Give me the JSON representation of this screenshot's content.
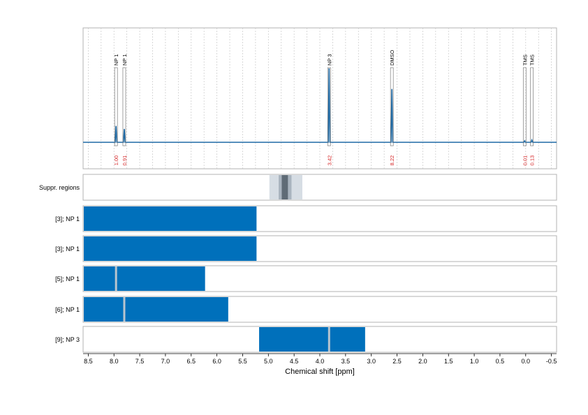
{
  "chart_data": {
    "type": "nmr-spectrum-with-range-tracks",
    "xlabel": "Chemical shift [ppm]",
    "xlim": [
      8.6,
      -0.6
    ],
    "x_ticks": [
      8.5,
      8.0,
      7.5,
      7.0,
      6.5,
      6.0,
      5.5,
      5.0,
      4.5,
      4.0,
      3.5,
      3.0,
      2.5,
      2.0,
      1.5,
      1.0,
      0.5,
      0.0,
      -0.5
    ],
    "x_tick_labels": [
      "8.5",
      "8.0",
      "7.5",
      "7.0",
      "6.5",
      "6.0",
      "5.5",
      "5.0",
      "4.5",
      "4.0",
      "3.5",
      "3.0",
      "2.5",
      "2.0",
      "1.5",
      "1.0",
      "0.5",
      "0.0",
      "-0.5"
    ],
    "grid": true,
    "spectrum_color": "#1f6aa5",
    "peak_label_color": "#d62728",
    "peaks": [
      {
        "label": "NP 1",
        "shift": 7.96,
        "height": 0.22,
        "integral": "1.00"
      },
      {
        "label": "NP 1",
        "shift": 7.8,
        "height": 0.18,
        "integral": "0.91"
      },
      {
        "label": "NP 3",
        "shift": 3.82,
        "height": 1.0,
        "integral": "3.42"
      },
      {
        "label": "DMSO",
        "shift": 2.6,
        "height": 0.72,
        "integral": "8.22"
      },
      {
        "label": "TMS",
        "shift": 0.02,
        "height": 0.02,
        "integral": "0.01"
      },
      {
        "label": "TMS",
        "shift": -0.12,
        "height": 0.03,
        "integral": "0.13"
      }
    ],
    "tracks": [
      {
        "label": "Suppr. regions",
        "kind": "suppression",
        "regions": [
          {
            "from": 4.98,
            "to": 4.34,
            "color": "#d6dde4"
          },
          {
            "from": 4.8,
            "to": 4.55,
            "color": "#a9b4bf"
          },
          {
            "from": 4.74,
            "to": 4.62,
            "color": "#5f6b76"
          }
        ]
      },
      {
        "label": "[3]; NP 1",
        "kind": "range",
        "from": 8.6,
        "to": 5.23,
        "markers": []
      },
      {
        "label": "[3]; NP 1",
        "kind": "range",
        "from": 8.6,
        "to": 5.23,
        "markers": []
      },
      {
        "label": "[5]; NP 1",
        "kind": "range",
        "from": 8.6,
        "to": 6.23,
        "markers": [
          7.96
        ]
      },
      {
        "label": "[6]; NP 1",
        "kind": "range",
        "from": 8.6,
        "to": 5.78,
        "markers": [
          7.8
        ]
      },
      {
        "label": "[9]; NP 3",
        "kind": "range",
        "from": 5.18,
        "to": 3.12,
        "markers": [
          3.82
        ]
      }
    ],
    "bar_color": "#0070bb",
    "marker_color": "#b8c4ce"
  }
}
